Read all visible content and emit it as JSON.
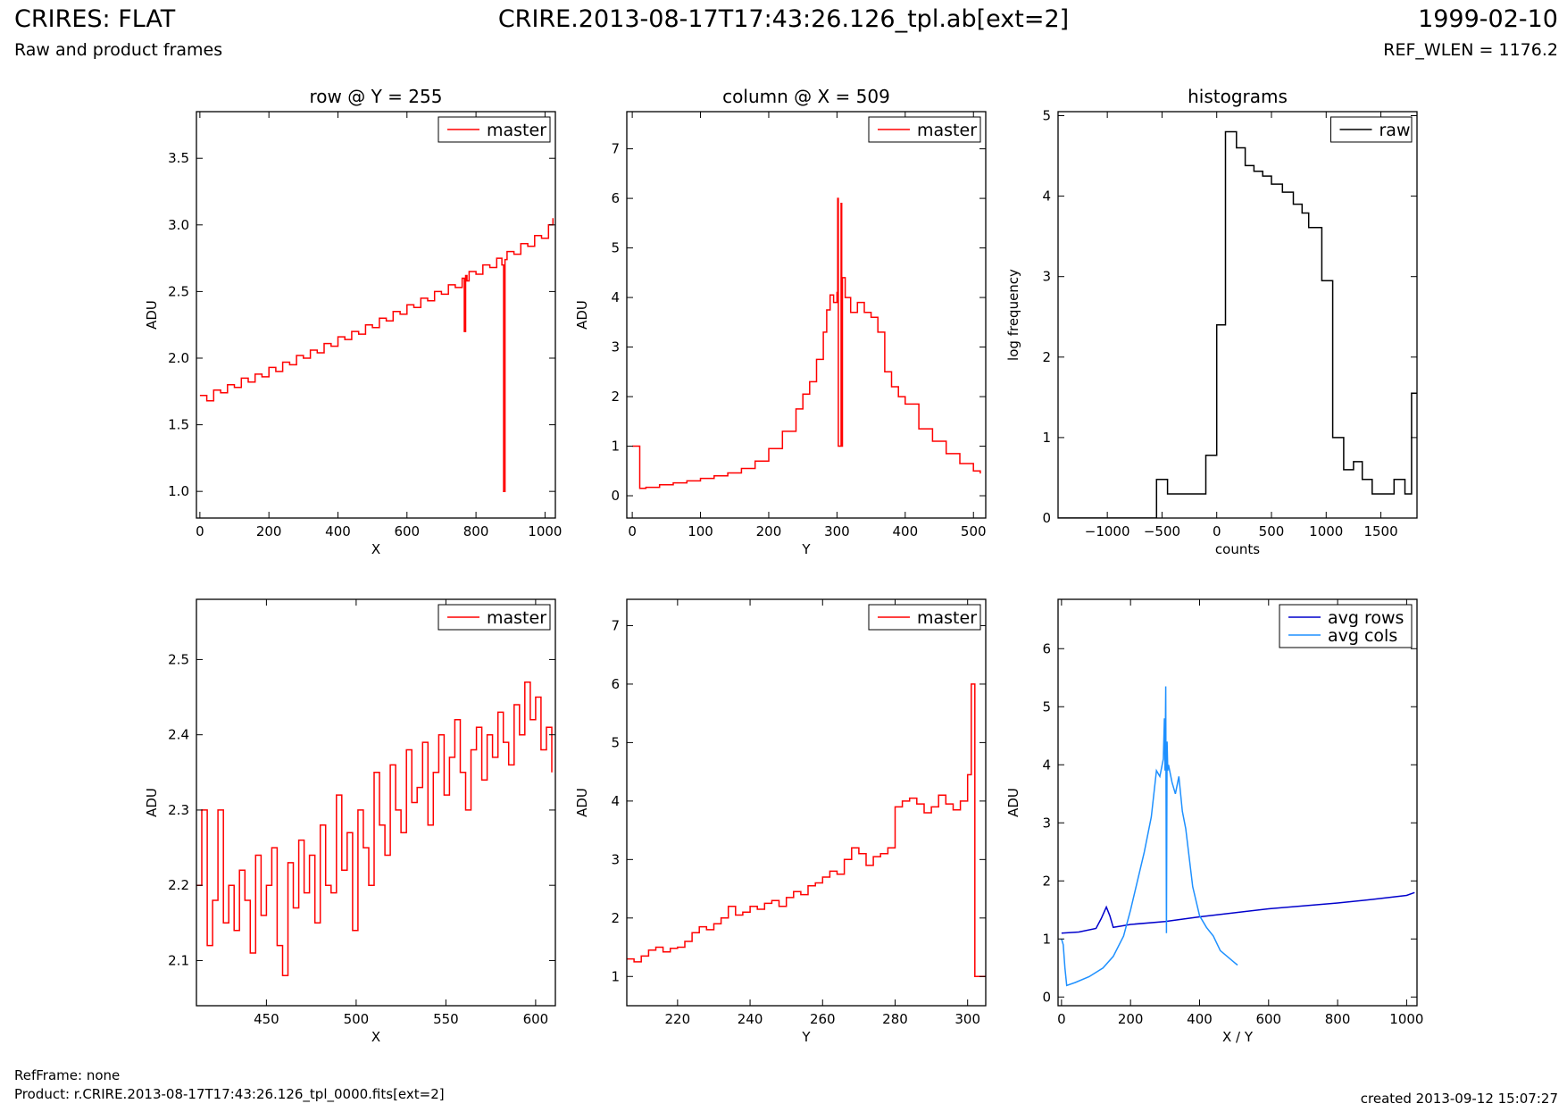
{
  "header": {
    "left_title": "CRIRES: FLAT",
    "left_subtitle": "Raw and product frames",
    "center_title": "CRIRE.2013-08-17T17:43:26.126_tpl.ab[ext=2]",
    "right_title": "1999-02-10",
    "right_subtitle": "REF_WLEN = 1176.2"
  },
  "footer": {
    "ref_frame": "RefFrame: none",
    "product": "Product: r.CRIRE.2013-08-17T17:43:26.126_tpl_0000.fits[ext=2]",
    "created": "created 2013-09-12 15:07:27"
  },
  "colors": {
    "red": "#ff0000",
    "black": "#000000",
    "dark_blue": "#0000cc",
    "light_blue": "#1e90ff"
  },
  "chart_data": [
    {
      "type": "line",
      "title": "row @ Y = 255",
      "xlabel": "X",
      "ylabel": "ADU",
      "xlim": [
        -10,
        1030
      ],
      "ylim": [
        0.8,
        3.85
      ],
      "xticks": [
        0,
        200,
        400,
        600,
        800,
        1000
      ],
      "yticks": [
        1.0,
        1.5,
        2.0,
        2.5,
        3.0,
        3.5
      ],
      "legend_position": "top-right",
      "series": [
        {
          "name": "master",
          "color": "#ff0000",
          "step": true,
          "x": [
            0,
            20,
            40,
            60,
            80,
            100,
            120,
            140,
            160,
            180,
            200,
            220,
            240,
            260,
            280,
            300,
            320,
            340,
            360,
            380,
            400,
            420,
            440,
            460,
            480,
            500,
            520,
            540,
            560,
            580,
            600,
            620,
            640,
            660,
            680,
            700,
            720,
            740,
            760,
            766,
            770,
            774,
            780,
            800,
            820,
            840,
            860,
            875,
            880,
            884,
            890,
            910,
            930,
            950,
            970,
            990,
            1010,
            1023
          ],
          "y": [
            1.72,
            1.68,
            1.76,
            1.74,
            1.8,
            1.78,
            1.85,
            1.82,
            1.88,
            1.86,
            1.93,
            1.9,
            1.97,
            1.95,
            2.02,
            2.0,
            2.06,
            2.04,
            2.11,
            2.09,
            2.16,
            2.14,
            2.2,
            2.18,
            2.25,
            2.23,
            2.3,
            2.28,
            2.35,
            2.33,
            2.4,
            2.38,
            2.45,
            2.43,
            2.5,
            2.48,
            2.55,
            2.53,
            2.6,
            2.2,
            2.62,
            2.58,
            2.65,
            2.63,
            2.7,
            2.68,
            2.75,
            2.7,
            1.0,
            2.74,
            2.8,
            2.78,
            2.86,
            2.84,
            2.92,
            2.9,
            3.0,
            3.05
          ]
        }
      ]
    },
    {
      "type": "line",
      "title": "column @ X = 509",
      "xlabel": "Y",
      "ylabel": "ADU",
      "xlim": [
        -8,
        518
      ],
      "ylim": [
        -0.45,
        7.75
      ],
      "xticks": [
        0,
        100,
        200,
        300,
        400,
        500
      ],
      "yticks": [
        0,
        1,
        2,
        3,
        4,
        5,
        6,
        7
      ],
      "legend_position": "top-right",
      "series": [
        {
          "name": "master",
          "color": "#ff0000",
          "step": true,
          "x": [
            0,
            10,
            11,
            20,
            40,
            60,
            80,
            100,
            120,
            140,
            160,
            180,
            200,
            220,
            240,
            250,
            260,
            270,
            280,
            285,
            290,
            295,
            300,
            301,
            302,
            303,
            306,
            307,
            308,
            312,
            320,
            330,
            340,
            350,
            360,
            370,
            380,
            390,
            400,
            420,
            440,
            460,
            480,
            500,
            510
          ],
          "y": [
            1.0,
            1.0,
            0.15,
            0.17,
            0.22,
            0.26,
            0.3,
            0.35,
            0.4,
            0.46,
            0.55,
            0.7,
            0.95,
            1.3,
            1.75,
            2.05,
            2.3,
            2.75,
            3.3,
            3.75,
            4.05,
            3.9,
            4.1,
            6.0,
            1.0,
            1.0,
            5.9,
            1.0,
            4.4,
            4.0,
            3.7,
            3.9,
            3.7,
            3.6,
            3.3,
            2.5,
            2.2,
            2.0,
            1.85,
            1.35,
            1.1,
            0.85,
            0.65,
            0.5,
            0.45
          ]
        }
      ]
    },
    {
      "type": "line",
      "title": "histograms",
      "xlabel": "counts",
      "ylabel": "log frequency",
      "xlim": [
        -1450,
        1830
      ],
      "ylim": [
        0,
        5.05
      ],
      "xticks": [
        -1000,
        -500,
        0,
        500,
        1000,
        1500
      ],
      "yticks": [
        0,
        1,
        2,
        3,
        4,
        5
      ],
      "legend_position": "top-right",
      "series": [
        {
          "name": "raw",
          "color": "#000000",
          "step": true,
          "x": [
            -1450,
            -550,
            -450,
            -200,
            -100,
            0,
            80,
            180,
            260,
            340,
            420,
            500,
            600,
            700,
            780,
            840,
            960,
            1060,
            1160,
            1250,
            1330,
            1420,
            1520,
            1620,
            1720,
            1780,
            1830
          ],
          "y": [
            0,
            0.48,
            0.3,
            0.3,
            0.78,
            2.4,
            4.8,
            4.6,
            4.38,
            4.31,
            4.25,
            4.15,
            4.05,
            3.9,
            3.79,
            3.61,
            2.95,
            1.0,
            0.6,
            0.7,
            0.48,
            0.3,
            0.3,
            0.48,
            0.3,
            1.55,
            1.55
          ]
        }
      ]
    },
    {
      "type": "line",
      "title": "",
      "xlabel": "X",
      "ylabel": "ADU",
      "xlim": [
        411,
        611
      ],
      "ylim": [
        2.04,
        2.58
      ],
      "xticks": [
        450,
        500,
        550,
        600
      ],
      "yticks": [
        2.1,
        2.2,
        2.3,
        2.4,
        2.5
      ],
      "legend_position": "top-right",
      "series": [
        {
          "name": "master",
          "color": "#ff0000",
          "step": true,
          "x": [
            411,
            414,
            417,
            420,
            423,
            426,
            429,
            432,
            435,
            438,
            441,
            444,
            447,
            450,
            453,
            456,
            459,
            462,
            465,
            468,
            471,
            474,
            477,
            480,
            483,
            486,
            489,
            492,
            495,
            498,
            501,
            504,
            507,
            510,
            513,
            516,
            519,
            522,
            525,
            528,
            531,
            534,
            537,
            540,
            543,
            546,
            549,
            552,
            555,
            558,
            561,
            564,
            567,
            570,
            573,
            576,
            579,
            582,
            585,
            588,
            591,
            594,
            597,
            600,
            603,
            606,
            609
          ],
          "y": [
            2.2,
            2.3,
            2.12,
            2.18,
            2.3,
            2.15,
            2.2,
            2.14,
            2.22,
            2.18,
            2.11,
            2.24,
            2.16,
            2.2,
            2.25,
            2.12,
            2.08,
            2.23,
            2.17,
            2.26,
            2.19,
            2.24,
            2.15,
            2.28,
            2.2,
            2.19,
            2.32,
            2.22,
            2.27,
            2.14,
            2.3,
            2.25,
            2.2,
            2.35,
            2.28,
            2.24,
            2.36,
            2.3,
            2.27,
            2.38,
            2.31,
            2.33,
            2.39,
            2.28,
            2.35,
            2.4,
            2.32,
            2.37,
            2.42,
            2.35,
            2.3,
            2.38,
            2.41,
            2.34,
            2.4,
            2.37,
            2.43,
            2.39,
            2.36,
            2.44,
            2.4,
            2.47,
            2.42,
            2.45,
            2.38,
            2.41,
            2.35
          ]
        }
      ]
    },
    {
      "type": "line",
      "title": "",
      "xlabel": "Y",
      "ylabel": "ADU",
      "xlim": [
        206,
        305
      ],
      "ylim": [
        0.5,
        7.45
      ],
      "xticks": [
        220,
        240,
        260,
        280,
        300
      ],
      "yticks": [
        1,
        2,
        3,
        4,
        5,
        6,
        7
      ],
      "legend_position": "top-right",
      "series": [
        {
          "name": "master",
          "color": "#ff0000",
          "step": true,
          "x": [
            206,
            208,
            210,
            212,
            214,
            216,
            218,
            220,
            222,
            224,
            226,
            228,
            230,
            232,
            234,
            236,
            238,
            240,
            242,
            244,
            246,
            248,
            250,
            252,
            254,
            256,
            258,
            260,
            262,
            264,
            266,
            268,
            270,
            272,
            274,
            276,
            278,
            280,
            282,
            284,
            286,
            288,
            290,
            292,
            294,
            296,
            298,
            300,
            301,
            302,
            303,
            305
          ],
          "y": [
            1.3,
            1.25,
            1.35,
            1.45,
            1.5,
            1.42,
            1.48,
            1.5,
            1.6,
            1.75,
            1.85,
            1.8,
            1.9,
            2.0,
            2.2,
            2.05,
            2.1,
            2.2,
            2.15,
            2.25,
            2.3,
            2.2,
            2.35,
            2.45,
            2.4,
            2.55,
            2.6,
            2.7,
            2.8,
            2.75,
            3.0,
            3.2,
            3.1,
            2.9,
            3.05,
            3.1,
            3.2,
            3.9,
            4.0,
            4.05,
            3.95,
            3.8,
            3.9,
            4.1,
            3.95,
            3.85,
            4.0,
            4.45,
            6.0,
            1.0,
            1.0,
            1.0
          ]
        }
      ]
    },
    {
      "type": "line",
      "title": "",
      "xlabel": "X / Y",
      "ylabel": "ADU",
      "xlim": [
        -10,
        1030
      ],
      "ylim": [
        -0.15,
        6.85
      ],
      "xticks": [
        0,
        200,
        400,
        600,
        800,
        1000
      ],
      "yticks": [
        0,
        1,
        2,
        3,
        4,
        5,
        6
      ],
      "legend_position": "top-right",
      "series": [
        {
          "name": "avg rows",
          "color": "#0000cc",
          "step": false,
          "x": [
            0,
            50,
            100,
            115,
            130,
            140,
            150,
            170,
            200,
            300,
            400,
            500,
            600,
            700,
            800,
            900,
            1000,
            1023
          ],
          "y": [
            1.1,
            1.12,
            1.18,
            1.35,
            1.55,
            1.4,
            1.2,
            1.22,
            1.25,
            1.3,
            1.38,
            1.45,
            1.52,
            1.57,
            1.62,
            1.68,
            1.75,
            1.8
          ]
        },
        {
          "name": "avg cols",
          "color": "#1e90ff",
          "step": false,
          "x": [
            0,
            5,
            10,
            15,
            40,
            80,
            120,
            150,
            180,
            200,
            220,
            240,
            260,
            275,
            285,
            295,
            298,
            300,
            302,
            304,
            306,
            308,
            310,
            320,
            330,
            340,
            350,
            360,
            380,
            400,
            420,
            440,
            460,
            480,
            500,
            510
          ],
          "y": [
            1.0,
            0.9,
            0.5,
            0.2,
            0.25,
            0.35,
            0.5,
            0.7,
            1.05,
            1.5,
            2.0,
            2.5,
            3.1,
            3.9,
            3.8,
            4.1,
            4.8,
            3.9,
            5.35,
            1.1,
            4.4,
            3.9,
            4.0,
            3.7,
            3.5,
            3.8,
            3.2,
            2.9,
            1.9,
            1.4,
            1.2,
            1.05,
            0.8,
            0.7,
            0.6,
            0.55
          ]
        }
      ]
    }
  ]
}
